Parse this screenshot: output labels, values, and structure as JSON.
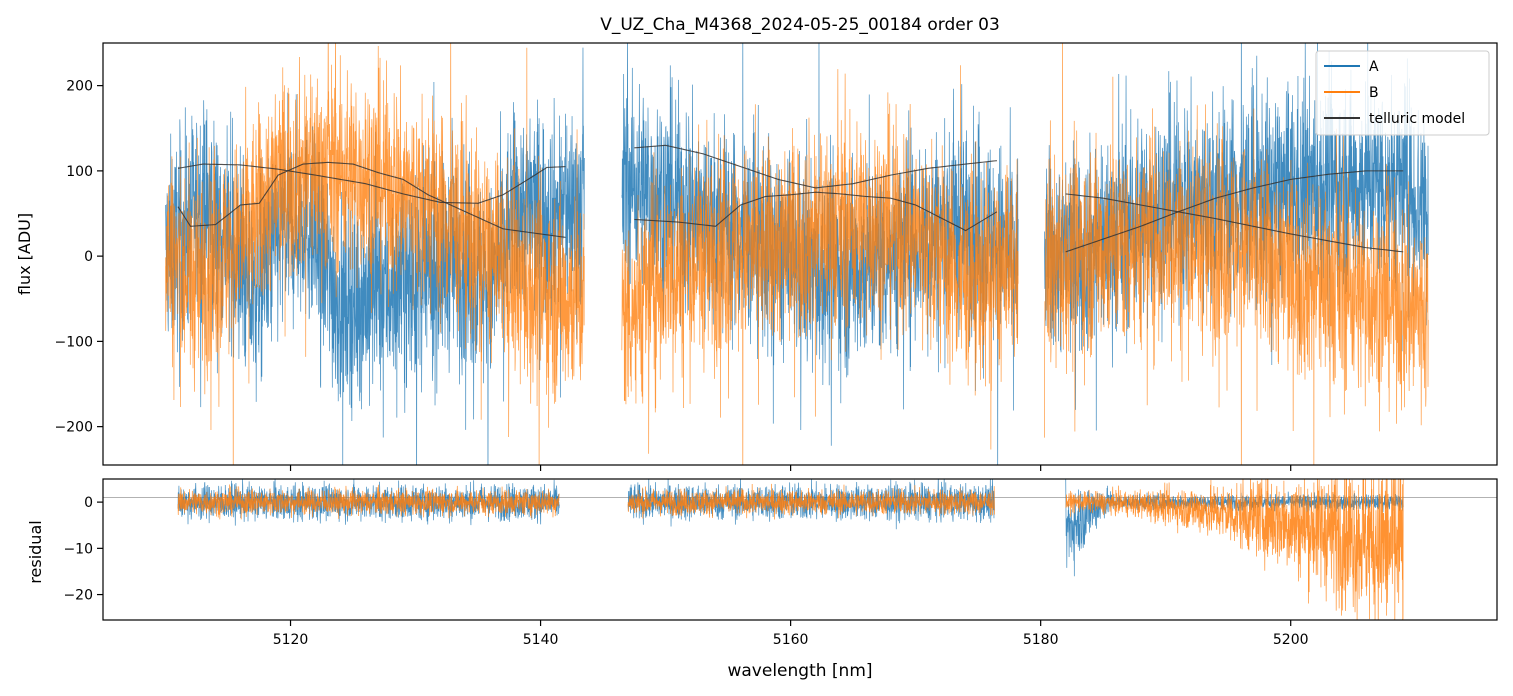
{
  "chart_data": [
    {
      "type": "line",
      "panel": "top",
      "title": "V_UZ_Cha_M4368_2024-05-25_00184  order 03",
      "xlabel": "",
      "ylabel": "flux [ADU]",
      "xlim": [
        5105,
        5216.5
      ],
      "ylim": [
        -245,
        250
      ],
      "yticks": [
        -200,
        -100,
        0,
        100,
        200
      ],
      "xticks": [
        5120,
        5140,
        5160,
        5180,
        5200
      ],
      "legend": {
        "position": "top-right",
        "entries": [
          "A",
          "B",
          "telluric model"
        ]
      },
      "series": [
        {
          "name": "A",
          "color": "#1f77b4",
          "kind": "noisy-spectrum",
          "segments": [
            [
              5110,
              5143.5
            ],
            [
              5146.5,
              5178.2
            ],
            [
              5180.3,
              5211
            ]
          ],
          "baseline": [
            [
              5110,
              0
            ],
            [
              5113,
              60
            ],
            [
              5115,
              20
            ],
            [
              5117,
              -50
            ],
            [
              5119,
              20
            ],
            [
              5121,
              50
            ],
            [
              5124,
              -60
            ],
            [
              5127,
              -40
            ],
            [
              5131,
              -30
            ],
            [
              5133,
              0
            ],
            [
              5136,
              -40
            ],
            [
              5138,
              60
            ],
            [
              5141,
              50
            ],
            [
              5143.5,
              60
            ],
            [
              5146.5,
              90
            ],
            [
              5150,
              70
            ],
            [
              5154,
              40
            ],
            [
              5158,
              10
            ],
            [
              5162,
              -20
            ],
            [
              5166,
              -10
            ],
            [
              5170,
              20
            ],
            [
              5174,
              40
            ],
            [
              5178,
              0
            ],
            [
              5180.3,
              0
            ],
            [
              5184,
              10
            ],
            [
              5190,
              60
            ],
            [
              5196,
              70
            ],
            [
              5202,
              80
            ],
            [
              5208,
              90
            ],
            [
              5211,
              60
            ]
          ],
          "noise_amplitude": 85
        },
        {
          "name": "B",
          "color": "#ff7f0e",
          "kind": "noisy-spectrum",
          "segments": [
            [
              5110,
              5143.5
            ],
            [
              5146.5,
              5178.2
            ],
            [
              5180.3,
              5211
            ]
          ],
          "baseline": [
            [
              5110,
              10
            ],
            [
              5112,
              -30
            ],
            [
              5115,
              0
            ],
            [
              5117,
              40
            ],
            [
              5119,
              90
            ],
            [
              5121,
              100
            ],
            [
              5124,
              100
            ],
            [
              5127,
              90
            ],
            [
              5131,
              60
            ],
            [
              5133,
              40
            ],
            [
              5136,
              0
            ],
            [
              5139,
              -40
            ],
            [
              5143.5,
              -50
            ],
            [
              5146.5,
              -70
            ],
            [
              5150,
              -20
            ],
            [
              5154,
              0
            ],
            [
              5158,
              10
            ],
            [
              5162,
              30
            ],
            [
              5166,
              40
            ],
            [
              5170,
              30
            ],
            [
              5174,
              -30
            ],
            [
              5178,
              -20
            ],
            [
              5180.3,
              -20
            ],
            [
              5184,
              10
            ],
            [
              5190,
              20
            ],
            [
              5196,
              10
            ],
            [
              5202,
              -30
            ],
            [
              5208,
              -50
            ],
            [
              5211,
              -70
            ]
          ],
          "noise_amplitude": 85
        },
        {
          "name": "telluric model",
          "color": "#333333",
          "kind": "smooth",
          "curves": [
            [
              [
                5111,
                103
              ],
              [
                5113,
                108
              ],
              [
                5116,
                107
              ],
              [
                5119,
                102
              ],
              [
                5122,
                95
              ],
              [
                5126,
                85
              ],
              [
                5129,
                73
              ],
              [
                5132,
                63
              ],
              [
                5135,
                62
              ],
              [
                5137,
                72
              ],
              [
                5139,
                90
              ],
              [
                5140.5,
                104
              ],
              [
                5142,
                105
              ]
            ],
            [
              [
                5111,
                58
              ],
              [
                5112,
                35
              ],
              [
                5114,
                37
              ],
              [
                5116,
                60
              ],
              [
                5117.5,
                62
              ],
              [
                5119,
                95
              ],
              [
                5121,
                108
              ],
              [
                5123,
                110
              ],
              [
                5125,
                108
              ],
              [
                5127,
                98
              ],
              [
                5129,
                90
              ],
              [
                5131,
                72
              ],
              [
                5134,
                52
              ],
              [
                5137,
                32
              ],
              [
                5139,
                28
              ],
              [
                5142,
                22
              ]
            ],
            [
              [
                5147.5,
                127
              ],
              [
                5150,
                130
              ],
              [
                5153,
                120
              ],
              [
                5156,
                105
              ],
              [
                5159,
                90
              ],
              [
                5162,
                80
              ],
              [
                5165,
                85
              ],
              [
                5168,
                95
              ],
              [
                5171,
                103
              ],
              [
                5174,
                108
              ],
              [
                5176.5,
                112
              ]
            ],
            [
              [
                5147.5,
                43
              ],
              [
                5151,
                40
              ],
              [
                5154,
                35
              ],
              [
                5156,
                60
              ],
              [
                5158,
                70
              ],
              [
                5160,
                72
              ],
              [
                5162,
                75
              ],
              [
                5164,
                73
              ],
              [
                5166,
                70
              ],
              [
                5168,
                68
              ],
              [
                5170,
                60
              ],
              [
                5172,
                45
              ],
              [
                5174,
                30
              ],
              [
                5176.5,
                52
              ]
            ],
            [
              [
                5182,
                73
              ],
              [
                5185,
                68
              ],
              [
                5188,
                60
              ],
              [
                5191,
                52
              ],
              [
                5194,
                44
              ],
              [
                5197,
                35
              ],
              [
                5200,
                26
              ],
              [
                5203,
                18
              ],
              [
                5206,
                10
              ],
              [
                5209,
                5
              ]
            ],
            [
              [
                5182,
                5
              ],
              [
                5185,
                20
              ],
              [
                5188,
                35
              ],
              [
                5191,
                52
              ],
              [
                5194,
                68
              ],
              [
                5197,
                80
              ],
              [
                5200,
                90
              ],
              [
                5203,
                96
              ],
              [
                5206,
                100
              ],
              [
                5209,
                100
              ]
            ]
          ]
        }
      ]
    },
    {
      "type": "line",
      "panel": "bottom",
      "xlabel": "wavelength [nm]",
      "ylabel": "residual",
      "xlim": [
        5105,
        5216.5
      ],
      "ylim": [
        -25.5,
        5
      ],
      "yticks": [
        0,
        -10,
        -20
      ],
      "xticks": [
        5120,
        5140,
        5160,
        5180,
        5200
      ],
      "reference_line": 1,
      "series": [
        {
          "name": "A",
          "color": "#1f77b4",
          "kind": "residual",
          "segments": [
            [
              5111,
              5141.5
            ],
            [
              5147,
              5176.3
            ],
            [
              5182,
              5209
            ]
          ],
          "noise_amplitude": 2.8
        },
        {
          "name": "B",
          "color": "#ff7f0e",
          "kind": "residual",
          "segments": [
            [
              5111,
              5141.5
            ],
            [
              5147,
              5176.3
            ],
            [
              5182,
              5209
            ]
          ],
          "noise_amplitude": 2.0
        }
      ]
    }
  ]
}
